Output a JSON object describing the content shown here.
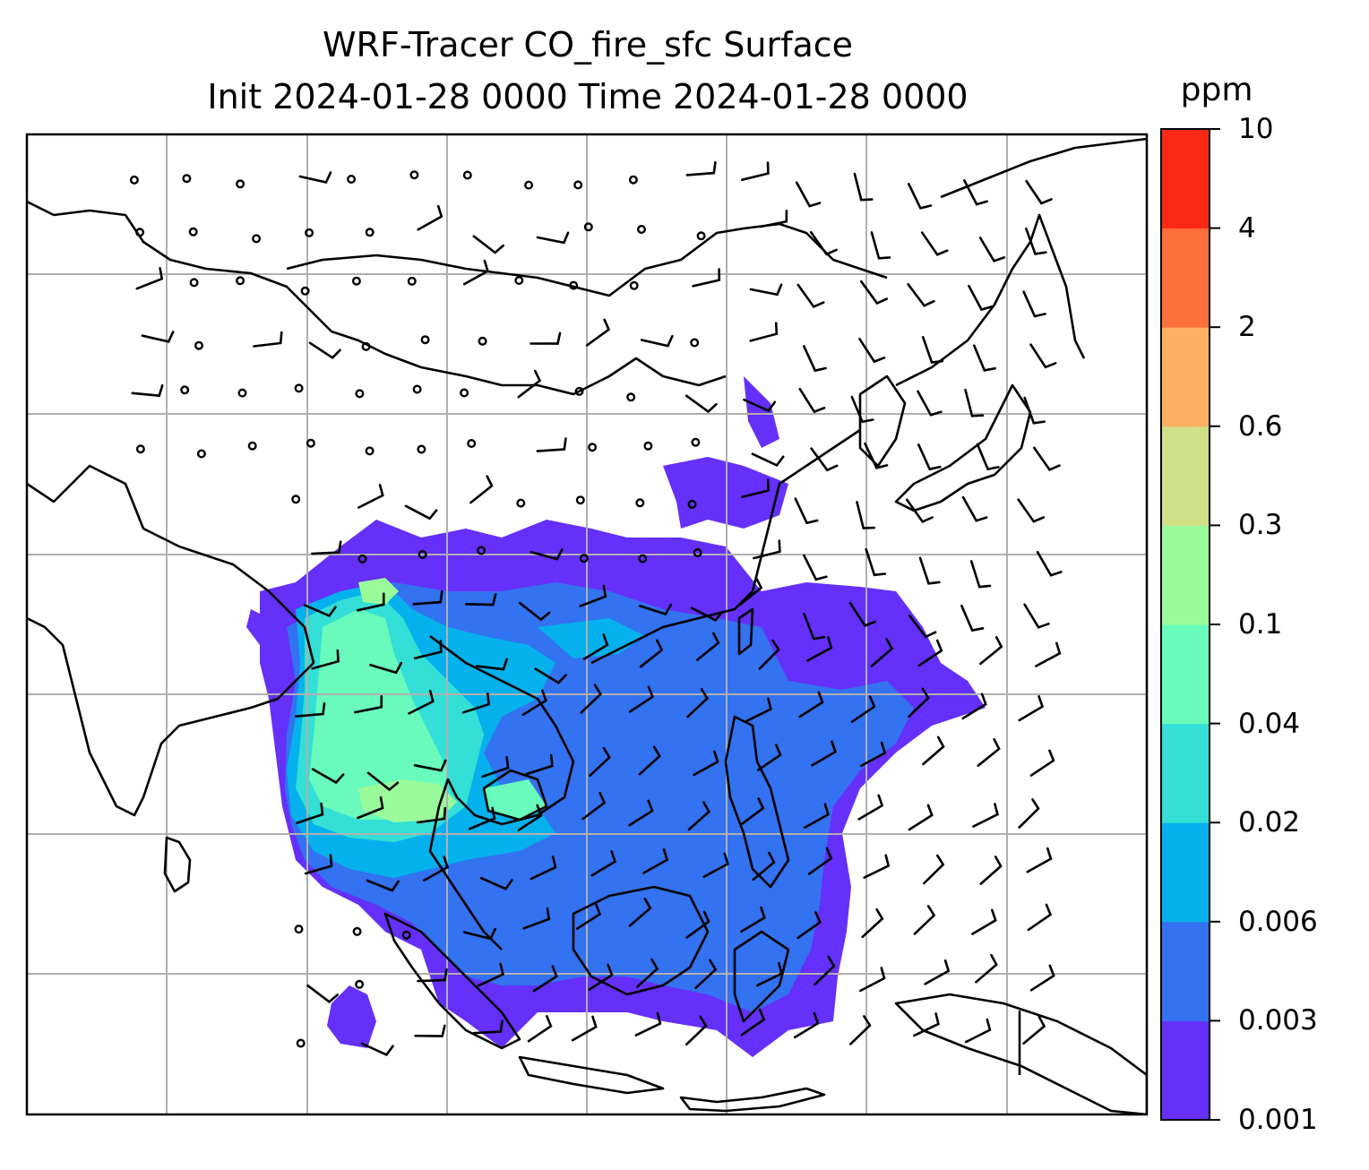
{
  "title": {
    "line1": "WRF-Tracer CO_fire_sfc Surface",
    "line2": "Init 2024-01-28 0000 Time 2024-01-28 0000"
  },
  "colorbar": {
    "unit": "ppm",
    "levels": [
      "0.001",
      "0.003",
      "0.006",
      "0.02",
      "0.04",
      "0.1",
      "0.3",
      "0.6",
      "2",
      "4",
      "10"
    ],
    "colors": [
      "#6530fa",
      "#3372f0",
      "#05b1ec",
      "#33dfd6",
      "#68fbbc",
      "#9afb9b",
      "#d0e087",
      "#fdb160",
      "#fd6f3b",
      "#fb2915"
    ]
  },
  "map": {
    "gridlines": true,
    "coastline_color": "#000000",
    "grid_color": "#b0b0b0",
    "wind_barbs": true
  }
}
